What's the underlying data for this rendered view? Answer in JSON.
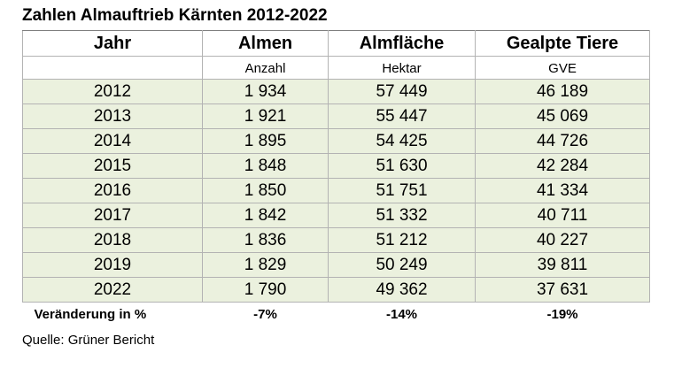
{
  "title": "Zahlen Almauftrieb Kärnten 2012-2022",
  "columns": {
    "year": "Jahr",
    "almen": "Almen",
    "flaeche": "Almfläche",
    "tiere": "Gealpte Tiere"
  },
  "units": {
    "year": "",
    "almen": "Anzahl",
    "flaeche": "Hektar",
    "tiere": "GVE"
  },
  "rows": [
    {
      "year": "2012",
      "almen": "1 934",
      "flaeche": "57 449",
      "tiere": "46 189"
    },
    {
      "year": "2013",
      "almen": "1 921",
      "flaeche": "55 447",
      "tiere": "45 069"
    },
    {
      "year": "2014",
      "almen": "1 895",
      "flaeche": "54 425",
      "tiere": "44 726"
    },
    {
      "year": "2015",
      "almen": "1 848",
      "flaeche": "51 630",
      "tiere": "42 284"
    },
    {
      "year": "2016",
      "almen": "1 850",
      "flaeche": "51 751",
      "tiere": "41 334"
    },
    {
      "year": "2017",
      "almen": "1 842",
      "flaeche": "51 332",
      "tiere": "40 711"
    },
    {
      "year": "2018",
      "almen": "1 836",
      "flaeche": "51 212",
      "tiere": "40 227"
    },
    {
      "year": "2019",
      "almen": "1 829",
      "flaeche": "50 249",
      "tiere": "39 811"
    },
    {
      "year": "2022",
      "almen": "1 790",
      "flaeche": "49 362",
      "tiere": "37 631"
    }
  ],
  "summary": {
    "label": "Veränderung in %",
    "almen": "-7%",
    "flaeche": "-14%",
    "tiere": "-19%"
  },
  "source": "Quelle: Grüner Bericht",
  "colors": {
    "row_fill": "#ebf1de",
    "grid": "#b3b3b3"
  }
}
